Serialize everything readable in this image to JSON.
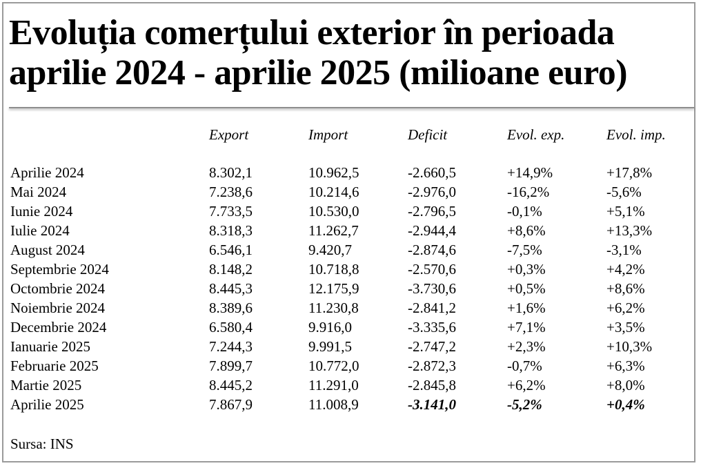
{
  "title_line1": "Evoluția comerțului exterior în perioada",
  "title_line2": "aprilie 2024 - aprilie 2025 (milioane euro)",
  "columns": [
    "Export",
    "Import",
    "Deficit",
    "Evol. exp.",
    "Evol. imp."
  ],
  "rows": [
    {
      "label": "Aprilie 2024",
      "export": "8.302,1",
      "import": "10.962,5",
      "deficit": "-2.660,5",
      "evol_exp": "+14,9%",
      "evol_imp": "+17,8%"
    },
    {
      "label": "Mai 2024",
      "export": "7.238,6",
      "import": "10.214,6",
      "deficit": "-2.976,0",
      "evol_exp": "-16,2%",
      "evol_imp": "-5,6%"
    },
    {
      "label": "Iunie 2024",
      "export": "7.733,5",
      "import": "10.530,0",
      "deficit": "-2.796,5",
      "evol_exp": "-0,1%",
      "evol_imp": "+5,1%"
    },
    {
      "label": "Iulie 2024",
      "export": "8.318,3",
      "import": "11.262,7",
      "deficit": "-2.944,4",
      "evol_exp": "+8,6%",
      "evol_imp": "+13,3%"
    },
    {
      "label": "August 2024",
      "export": "6.546,1",
      "import": "9.420,7",
      "deficit": "-2.874,6",
      "evol_exp": "-7,5%",
      "evol_imp": "-3,1%"
    },
    {
      "label": "Septembrie 2024",
      "export": "8.148,2",
      "import": "10.718,8",
      "deficit": "-2.570,6",
      "evol_exp": "+0,3%",
      "evol_imp": "+4,2%"
    },
    {
      "label": "Octombrie 2024",
      "export": "8.445,3",
      "import": "12.175,9",
      "deficit": "-3.730,6",
      "evol_exp": "+0,5%",
      "evol_imp": "+8,6%"
    },
    {
      "label": "Noiembrie 2024",
      "export": "8.389,6",
      "import": "11.230,8",
      "deficit": "-2.841,2",
      "evol_exp": "+1,6%",
      "evol_imp": "+6,2%"
    },
    {
      "label": "Decembrie 2024",
      "export": "6.580,4",
      "import": "9.916,0",
      "deficit": "-3.335,6",
      "evol_exp": "+7,1%",
      "evol_imp": "+3,5%"
    },
    {
      "label": "Ianuarie 2025",
      "export": "7.244,3",
      "import": "9.991,5",
      "deficit": "-2.747,2",
      "evol_exp": "+2,3%",
      "evol_imp": "+10,3%"
    },
    {
      "label": "Februarie 2025",
      "export": "7.899,7",
      "import": "10.772,0",
      "deficit": "-2.872,3",
      "evol_exp": "-0,7%",
      "evol_imp": "+6,3%"
    },
    {
      "label": "Martie 2025",
      "export": "8.445,2",
      "import": "11.291,0",
      "deficit": "-2.845,8",
      "evol_exp": "+6,2%",
      "evol_imp": "+8,0%"
    },
    {
      "label": "Aprilie 2025",
      "export": "7.867,9",
      "import": "11.008,9",
      "deficit": "-3.141,0",
      "evol_exp": "-5,2%",
      "evol_imp": "+0,4%"
    }
  ],
  "source": "Sursa: INS"
}
